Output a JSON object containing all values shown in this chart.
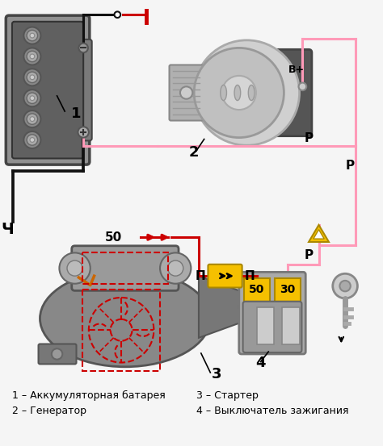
{
  "background_color": "#f5f5f5",
  "legend": [
    "1 – Аккумуляторная батарея",
    "2 – Генератор",
    "3 – Стартер",
    "4 – Выключатель зажигания"
  ],
  "pink": "#ff9ab8",
  "black": "#111111",
  "red": "#cc0000",
  "yellow": "#f5c000",
  "figsize": [
    4.74,
    5.53
  ],
  "dpi": 100
}
